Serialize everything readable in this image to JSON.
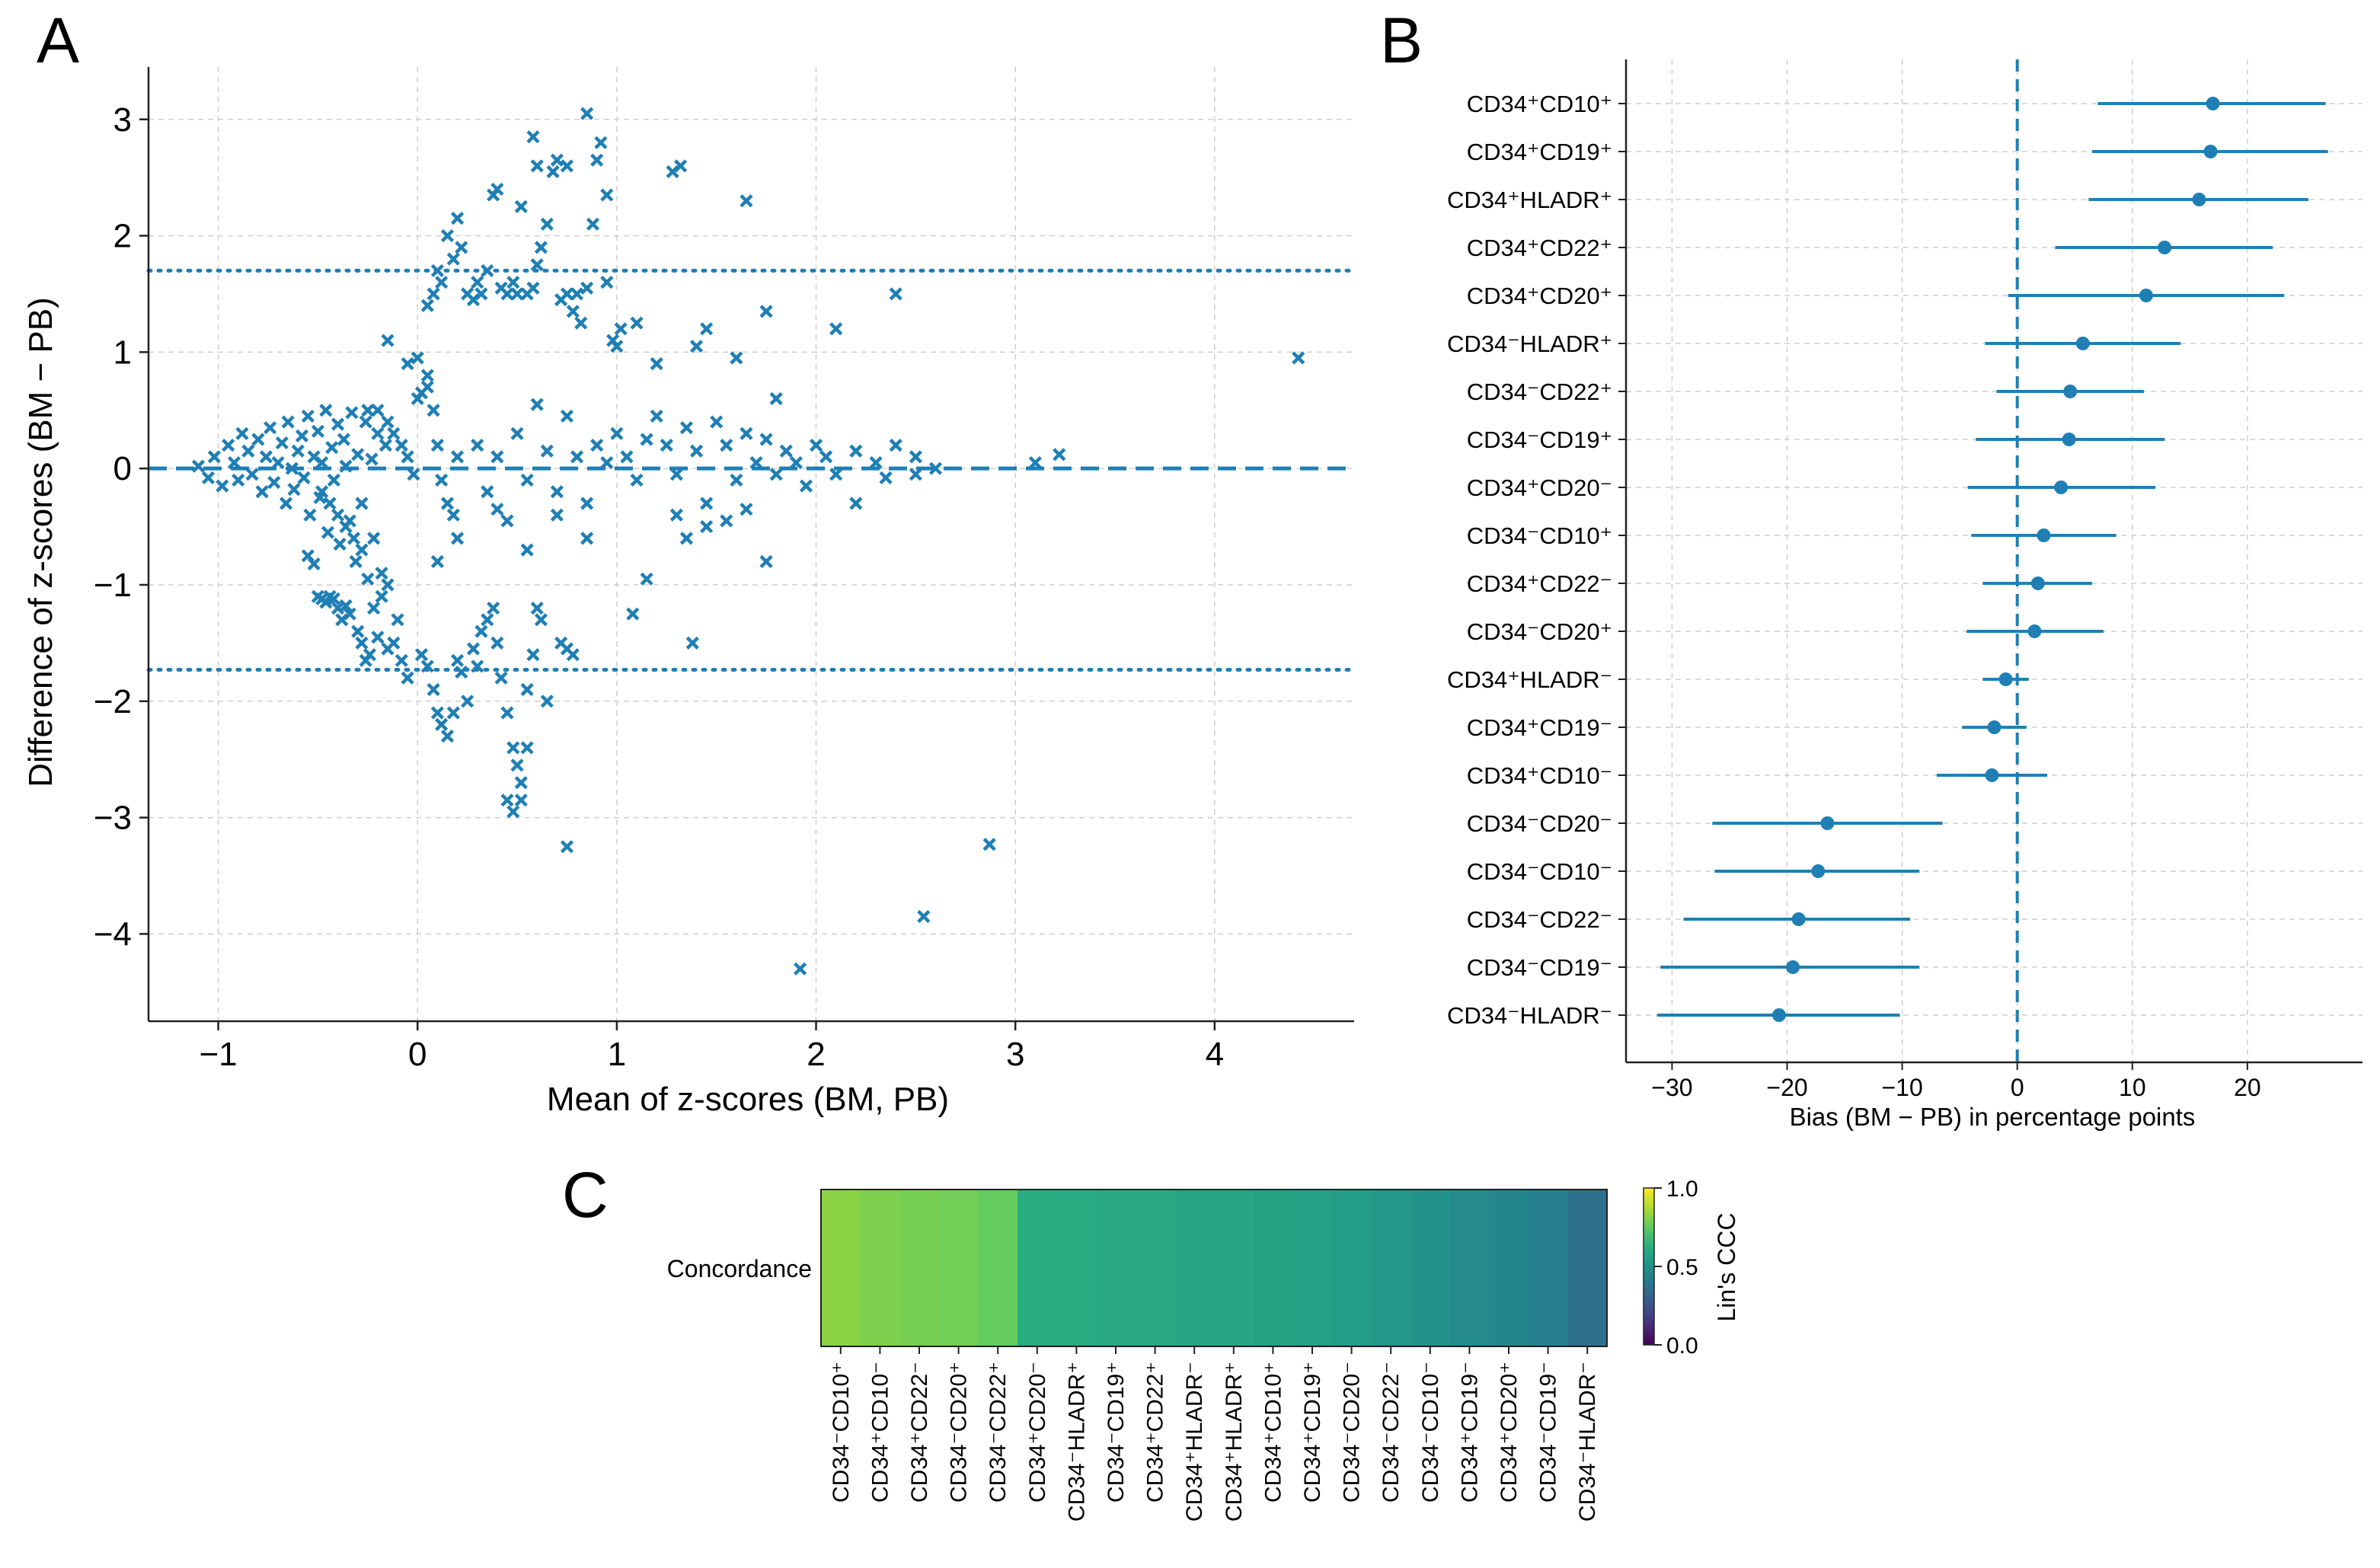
{
  "panel_labels": {
    "a": "A",
    "b": "B",
    "c": "C"
  },
  "colors": {
    "marker": "#1f7fb4",
    "grid": "#cfcfcf",
    "axis": "#222222"
  },
  "chart_data": [
    {
      "id": "panelA",
      "type": "scatter",
      "title": "",
      "xlabel": "Mean of z-scores (BM, PB)",
      "ylabel": "Difference of z-scores (BM − PB)",
      "xlim": [
        -1.35,
        4.7
      ],
      "ylim": [
        -4.75,
        3.45
      ],
      "xticks": [
        -1,
        0,
        1,
        2,
        3,
        4
      ],
      "xtick_labels": [
        "−1",
        "0",
        "1",
        "2",
        "3",
        "4"
      ],
      "yticks": [
        -4,
        -3,
        -2,
        -1,
        0,
        1,
        2,
        3
      ],
      "ytick_labels": [
        "−4",
        "−3",
        "−2",
        "−1",
        "0",
        "1",
        "2",
        "3"
      ],
      "reference_lines": [
        {
          "name": "mean-difference",
          "y": 0.0,
          "style": "dashed"
        },
        {
          "name": "upper-limit-of-agreement",
          "y": 1.7,
          "style": "dotted"
        },
        {
          "name": "lower-limit-of-agreement",
          "y": -1.73,
          "style": "dotted"
        }
      ],
      "marker": "x",
      "points": [
        [
          -1.1,
          0.02
        ],
        [
          -1.05,
          -0.08
        ],
        [
          -1.02,
          0.1
        ],
        [
          -0.98,
          -0.15
        ],
        [
          -0.95,
          0.2
        ],
        [
          -0.92,
          0.05
        ],
        [
          -0.9,
          -0.1
        ],
        [
          -0.88,
          0.3
        ],
        [
          -0.85,
          0.15
        ],
        [
          -0.83,
          -0.05
        ],
        [
          -0.8,
          0.25
        ],
        [
          -0.78,
          -0.2
        ],
        [
          -0.76,
          0.1
        ],
        [
          -0.74,
          0.35
        ],
        [
          -0.72,
          -0.12
        ],
        [
          -0.7,
          0.05
        ],
        [
          -0.68,
          0.22
        ],
        [
          -0.66,
          -0.3
        ],
        [
          -0.65,
          0.4
        ],
        [
          -0.63,
          0.0
        ],
        [
          -0.62,
          -0.18
        ],
        [
          -0.6,
          0.15
        ],
        [
          -0.58,
          0.28
        ],
        [
          -0.57,
          -0.08
        ],
        [
          -0.55,
          0.45
        ],
        [
          -0.54,
          -0.4
        ],
        [
          -0.52,
          0.1
        ],
        [
          -0.5,
          0.32
        ],
        [
          -0.49,
          -0.25
        ],
        [
          -0.48,
          0.05
        ],
        [
          -0.46,
          0.5
        ],
        [
          -0.45,
          -0.55
        ],
        [
          -0.43,
          0.18
        ],
        [
          -0.42,
          -0.1
        ],
        [
          -0.4,
          0.38
        ],
        [
          -0.39,
          -0.65
        ],
        [
          -0.37,
          0.25
        ],
        [
          -0.36,
          0.02
        ],
        [
          -0.34,
          -0.45
        ],
        [
          -0.33,
          0.48
        ],
        [
          -0.31,
          -0.8
        ],
        [
          -0.3,
          0.12
        ],
        [
          -0.28,
          -0.3
        ],
        [
          -0.26,
          0.4
        ],
        [
          -0.25,
          -0.95
        ],
        [
          -0.23,
          0.08
        ],
        [
          -0.22,
          -0.6
        ],
        [
          -0.2,
          0.3
        ],
        [
          -0.18,
          -1.1
        ],
        [
          -0.16,
          0.2
        ],
        [
          -0.55,
          -0.75
        ],
        [
          -0.52,
          -0.82
        ],
        [
          -0.5,
          -1.1
        ],
        [
          -0.48,
          -1.12
        ],
        [
          -0.46,
          -1.15
        ],
        [
          -0.44,
          -1.1
        ],
        [
          -0.42,
          -1.12
        ],
        [
          -0.4,
          -1.2
        ],
        [
          -0.38,
          -1.3
        ],
        [
          -0.36,
          -1.18
        ],
        [
          -0.34,
          -1.25
        ],
        [
          -0.3,
          -1.4
        ],
        [
          -0.28,
          -1.5
        ],
        [
          -0.26,
          -1.65
        ],
        [
          -0.24,
          -1.6
        ],
        [
          -0.2,
          -1.45
        ],
        [
          -0.15,
          -1.55
        ],
        [
          -0.12,
          -1.5
        ],
        [
          -0.08,
          -1.65
        ],
        [
          -0.05,
          -1.8
        ],
        [
          -0.1,
          -1.3
        ],
        [
          -0.15,
          -1.0
        ],
        [
          -0.18,
          -0.9
        ],
        [
          -0.22,
          -1.2
        ],
        [
          -0.28,
          -0.7
        ],
        [
          -0.32,
          -0.6
        ],
        [
          -0.36,
          -0.5
        ],
        [
          -0.4,
          -0.4
        ],
        [
          -0.44,
          -0.3
        ],
        [
          -0.48,
          -0.2
        ],
        [
          -0.25,
          0.5
        ],
        [
          -0.2,
          0.5
        ],
        [
          -0.15,
          0.4
        ],
        [
          -0.12,
          0.3
        ],
        [
          -0.08,
          0.2
        ],
        [
          -0.05,
          0.1
        ],
        [
          -0.02,
          -0.05
        ],
        [
          0.0,
          0.6
        ],
        [
          0.02,
          0.65
        ],
        [
          0.05,
          0.8
        ],
        [
          -0.15,
          1.1
        ],
        [
          -0.05,
          0.9
        ],
        [
          0.0,
          0.95
        ],
        [
          0.05,
          0.7
        ],
        [
          0.08,
          0.5
        ],
        [
          0.1,
          0.2
        ],
        [
          0.12,
          -0.1
        ],
        [
          0.15,
          -0.3
        ],
        [
          0.18,
          -0.4
        ],
        [
          0.2,
          0.1
        ],
        [
          0.02,
          -1.6
        ],
        [
          0.05,
          -1.7
        ],
        [
          0.08,
          -1.9
        ],
        [
          0.1,
          -2.1
        ],
        [
          0.12,
          -2.2
        ],
        [
          0.15,
          -2.3
        ],
        [
          0.18,
          -2.1
        ],
        [
          0.2,
          -1.65
        ],
        [
          0.22,
          -1.75
        ],
        [
          0.25,
          -2.0
        ],
        [
          0.28,
          -1.55
        ],
        [
          0.3,
          -1.7
        ],
        [
          0.32,
          -1.4
        ],
        [
          0.35,
          -1.3
        ],
        [
          0.38,
          -1.2
        ],
        [
          0.4,
          -1.5
        ],
        [
          0.42,
          -1.8
        ],
        [
          0.45,
          -2.1
        ],
        [
          0.48,
          -2.4
        ],
        [
          0.5,
          -2.55
        ],
        [
          0.52,
          -2.7
        ],
        [
          0.55,
          -2.4
        ],
        [
          0.45,
          -2.85
        ],
        [
          0.48,
          -2.95
        ],
        [
          0.52,
          -2.85
        ],
        [
          0.55,
          -1.9
        ],
        [
          0.58,
          -1.6
        ],
        [
          0.6,
          -1.2
        ],
        [
          0.62,
          -1.3
        ],
        [
          0.65,
          -2.0
        ],
        [
          0.05,
          1.4
        ],
        [
          0.08,
          1.5
        ],
        [
          0.1,
          1.7
        ],
        [
          0.12,
          1.6
        ],
        [
          0.15,
          2.0
        ],
        [
          0.18,
          1.8
        ],
        [
          0.2,
          2.15
        ],
        [
          0.22,
          1.9
        ],
        [
          0.25,
          1.5
        ],
        [
          0.28,
          1.45
        ],
        [
          0.3,
          1.6
        ],
        [
          0.32,
          1.5
        ],
        [
          0.35,
          1.7
        ],
        [
          0.38,
          2.35
        ],
        [
          0.4,
          2.4
        ],
        [
          0.42,
          1.55
        ],
        [
          0.45,
          1.5
        ],
        [
          0.48,
          1.6
        ],
        [
          0.5,
          1.5
        ],
        [
          0.52,
          2.25
        ],
        [
          0.55,
          1.5
        ],
        [
          0.58,
          1.55
        ],
        [
          0.6,
          1.75
        ],
        [
          0.62,
          1.9
        ],
        [
          0.65,
          2.1
        ],
        [
          0.68,
          2.55
        ],
        [
          0.7,
          2.65
        ],
        [
          0.72,
          1.45
        ],
        [
          0.75,
          1.5
        ],
        [
          0.78,
          1.35
        ],
        [
          0.8,
          1.5
        ],
        [
          0.82,
          1.25
        ],
        [
          0.85,
          1.55
        ],
        [
          0.88,
          2.1
        ],
        [
          0.9,
          2.65
        ],
        [
          0.92,
          2.8
        ],
        [
          0.95,
          1.6
        ],
        [
          0.58,
          2.85
        ],
        [
          0.6,
          2.6
        ],
        [
          0.75,
          2.6
        ],
        [
          0.85,
          3.05
        ],
        [
          0.95,
          2.35
        ],
        [
          0.98,
          1.1
        ],
        [
          1.0,
          1.05
        ],
        [
          1.02,
          1.2
        ],
        [
          1.1,
          1.25
        ],
        [
          1.2,
          0.9
        ],
        [
          1.28,
          2.55
        ],
        [
          1.32,
          2.6
        ],
        [
          1.4,
          1.05
        ],
        [
          1.45,
          1.2
        ],
        [
          1.6,
          0.95
        ],
        [
          1.65,
          2.3
        ],
        [
          1.75,
          1.35
        ],
        [
          2.1,
          1.2
        ],
        [
          2.4,
          1.5
        ],
        [
          4.42,
          0.95
        ],
        [
          0.3,
          0.2
        ],
        [
          0.35,
          -0.2
        ],
        [
          0.4,
          0.1
        ],
        [
          0.45,
          -0.45
        ],
        [
          0.5,
          0.3
        ],
        [
          0.55,
          -0.1
        ],
        [
          0.6,
          0.55
        ],
        [
          0.65,
          0.15
        ],
        [
          0.7,
          -0.2
        ],
        [
          0.75,
          0.45
        ],
        [
          0.8,
          0.1
        ],
        [
          0.85,
          -0.3
        ],
        [
          0.9,
          0.2
        ],
        [
          0.95,
          0.05
        ],
        [
          1.0,
          0.3
        ],
        [
          1.05,
          0.1
        ],
        [
          1.1,
          -0.1
        ],
        [
          1.15,
          0.25
        ],
        [
          1.2,
          0.45
        ],
        [
          1.25,
          0.2
        ],
        [
          1.3,
          -0.05
        ],
        [
          1.35,
          0.35
        ],
        [
          1.4,
          0.15
        ],
        [
          1.45,
          -0.3
        ],
        [
          1.5,
          0.4
        ],
        [
          1.55,
          0.2
        ],
        [
          1.6,
          -0.1
        ],
        [
          1.65,
          0.3
        ],
        [
          1.7,
          0.05
        ],
        [
          1.75,
          0.25
        ],
        [
          1.8,
          -0.05
        ],
        [
          1.85,
          0.15
        ],
        [
          1.9,
          0.05
        ],
        [
          1.95,
          -0.15
        ],
        [
          2.0,
          0.2
        ],
        [
          2.05,
          0.1
        ],
        [
          2.1,
          -0.05
        ],
        [
          2.2,
          0.15
        ],
        [
          2.3,
          0.05
        ],
        [
          2.4,
          0.2
        ],
        [
          2.5,
          -0.05
        ],
        [
          2.6,
          0.0
        ],
        [
          3.1,
          0.05
        ],
        [
          3.22,
          0.12
        ],
        [
          2.5,
          0.1
        ],
        [
          2.35,
          -0.08
        ],
        [
          1.3,
          -0.4
        ],
        [
          1.35,
          -0.6
        ],
        [
          1.45,
          -0.5
        ],
        [
          1.55,
          -0.45
        ],
        [
          1.65,
          -0.35
        ],
        [
          1.75,
          -0.8
        ],
        [
          1.8,
          0.6
        ],
        [
          2.2,
          -0.3
        ],
        [
          1.15,
          -0.95
        ],
        [
          1.08,
          -1.25
        ],
        [
          1.38,
          -1.5
        ],
        [
          0.75,
          -1.55
        ],
        [
          0.78,
          -1.6
        ],
        [
          0.72,
          -1.5
        ],
        [
          0.75,
          -3.25
        ],
        [
          1.92,
          -4.3
        ],
        [
          2.54,
          -3.85
        ],
        [
          2.87,
          -3.23
        ],
        [
          0.7,
          -0.4
        ],
        [
          0.85,
          -0.6
        ],
        [
          0.55,
          -0.7
        ],
        [
          0.4,
          -0.35
        ],
        [
          0.2,
          -0.6
        ],
        [
          0.1,
          -0.8
        ]
      ]
    },
    {
      "id": "panelB",
      "type": "forest",
      "xlabel": "Bias (BM − PB) in percentage points",
      "xlim": [
        -34,
        30
      ],
      "xticks": [
        -30,
        -20,
        -10,
        0,
        10,
        20
      ],
      "xtick_labels": [
        "−30",
        "−20",
        "−10",
        "0",
        "10",
        "20"
      ],
      "reference_line_x": 0,
      "rows": [
        {
          "label": "CD34⁺CD10⁺",
          "bias": 17.0,
          "low": 7.0,
          "high": 26.8
        },
        {
          "label": "CD34⁺CD19⁺",
          "bias": 16.8,
          "low": 6.5,
          "high": 27.0
        },
        {
          "label": "CD34⁺HLADR⁺",
          "bias": 15.8,
          "low": 6.2,
          "high": 25.3
        },
        {
          "label": "CD34⁺CD22⁺",
          "bias": 12.8,
          "low": 3.3,
          "high": 22.2
        },
        {
          "label": "CD34⁺CD20⁺",
          "bias": 11.2,
          "low": -0.8,
          "high": 23.2
        },
        {
          "label": "CD34⁻HLADR⁺",
          "bias": 5.7,
          "low": -2.8,
          "high": 14.2
        },
        {
          "label": "CD34⁻CD22⁺",
          "bias": 4.6,
          "low": -1.8,
          "high": 11.0
        },
        {
          "label": "CD34⁻CD19⁺",
          "bias": 4.5,
          "low": -3.6,
          "high": 12.8
        },
        {
          "label": "CD34⁺CD20⁻",
          "bias": 3.8,
          "low": -4.3,
          "high": 12.0
        },
        {
          "label": "CD34⁻CD10⁺",
          "bias": 2.3,
          "low": -4.0,
          "high": 8.6
        },
        {
          "label": "CD34⁺CD22⁻",
          "bias": 1.8,
          "low": -3.0,
          "high": 6.5
        },
        {
          "label": "CD34⁻CD20⁺",
          "bias": 1.5,
          "low": -4.4,
          "high": 7.5
        },
        {
          "label": "CD34⁺HLADR⁻",
          "bias": -1.0,
          "low": -3.0,
          "high": 1.0
        },
        {
          "label": "CD34⁺CD19⁻",
          "bias": -2.0,
          "low": -4.8,
          "high": 0.8
        },
        {
          "label": "CD34⁺CD10⁻",
          "bias": -2.2,
          "low": -7.0,
          "high": 2.6
        },
        {
          "label": "CD34⁻CD20⁻",
          "bias": -16.5,
          "low": -26.5,
          "high": -6.5
        },
        {
          "label": "CD34⁻CD10⁻",
          "bias": -17.3,
          "low": -26.3,
          "high": -8.5
        },
        {
          "label": "CD34⁻CD22⁻",
          "bias": -19.0,
          "low": -29.0,
          "high": -9.3
        },
        {
          "label": "CD34⁻CD19⁻",
          "bias": -19.5,
          "low": -31.0,
          "high": -8.5
        },
        {
          "label": "CD34⁻HLADR⁻",
          "bias": -20.7,
          "low": -31.3,
          "high": -10.2
        }
      ]
    },
    {
      "id": "panelC",
      "type": "heatmap",
      "ylabel_row": "Concordance",
      "colorbar_label": "Lin's CCC",
      "colorbar_ticks": [
        "0.0",
        "0.5",
        "1.0"
      ],
      "colorbar_range": [
        0,
        1
      ],
      "columns": [
        {
          "label": "CD34⁻CD10⁺",
          "ccc": 0.82
        },
        {
          "label": "CD34⁺CD10⁻",
          "ccc": 0.8
        },
        {
          "label": "CD34⁺CD22⁻",
          "ccc": 0.79
        },
        {
          "label": "CD34⁻CD20⁺",
          "ccc": 0.78
        },
        {
          "label": "CD34⁻CD22⁺",
          "ccc": 0.76
        },
        {
          "label": "CD34⁺CD20⁻",
          "ccc": 0.62
        },
        {
          "label": "CD34⁻HLADR⁺",
          "ccc": 0.61
        },
        {
          "label": "CD34⁻CD19⁺",
          "ccc": 0.6
        },
        {
          "label": "CD34⁺CD22⁺",
          "ccc": 0.6
        },
        {
          "label": "CD34⁺HLADR⁻",
          "ccc": 0.59
        },
        {
          "label": "CD34⁺HLADR⁺",
          "ccc": 0.59
        },
        {
          "label": "CD34⁺CD10⁺",
          "ccc": 0.58
        },
        {
          "label": "CD34⁺CD19⁺",
          "ccc": 0.57
        },
        {
          "label": "CD34⁻CD20⁻",
          "ccc": 0.55
        },
        {
          "label": "CD34⁻CD22⁻",
          "ccc": 0.53
        },
        {
          "label": "CD34⁻CD10⁻",
          "ccc": 0.51
        },
        {
          "label": "CD34⁺CD19⁻",
          "ccc": 0.47
        },
        {
          "label": "CD34⁺CD20⁺",
          "ccc": 0.45
        },
        {
          "label": "CD34⁻CD19⁻",
          "ccc": 0.43
        },
        {
          "label": "CD34⁻HLADR⁻",
          "ccc": 0.37
        }
      ]
    }
  ]
}
